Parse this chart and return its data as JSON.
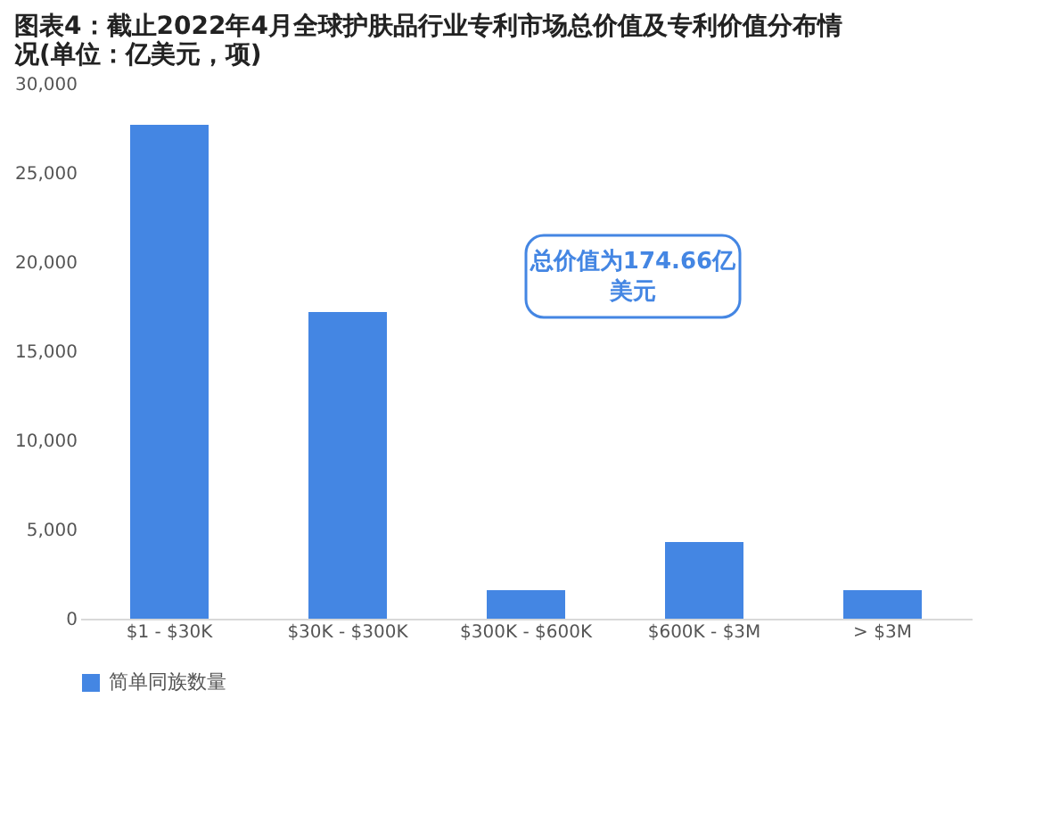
{
  "chart_data": {
    "type": "bar",
    "title": "图表4：截止2022年4月全球护肤品行业专利市场总价值及专利价值分布情况(单位：亿美元，项)",
    "categories": [
      "$1 - $30K",
      "$30K - $300K",
      "$300K - $600K",
      "$600K - $3M",
      "> $3M"
    ],
    "series": [
      {
        "name": "简单同族数量",
        "color": "#4486e3",
        "values": [
          27700,
          17200,
          1600,
          4300,
          1600
        ]
      }
    ],
    "ylim": [
      0,
      30000
    ],
    "yticks": [
      {
        "value": 0,
        "label": "0"
      },
      {
        "value": 5000,
        "label": "5,000"
      },
      {
        "value": 10000,
        "label": "10,000"
      },
      {
        "value": 15000,
        "label": "15,000"
      },
      {
        "value": 20000,
        "label": "20,000"
      },
      {
        "value": 25000,
        "label": "25,000"
      },
      {
        "value": 30000,
        "label": "30,000"
      }
    ],
    "grid": false,
    "legend": "bottom",
    "annotations": [
      "总价值为174.66亿美元"
    ]
  }
}
